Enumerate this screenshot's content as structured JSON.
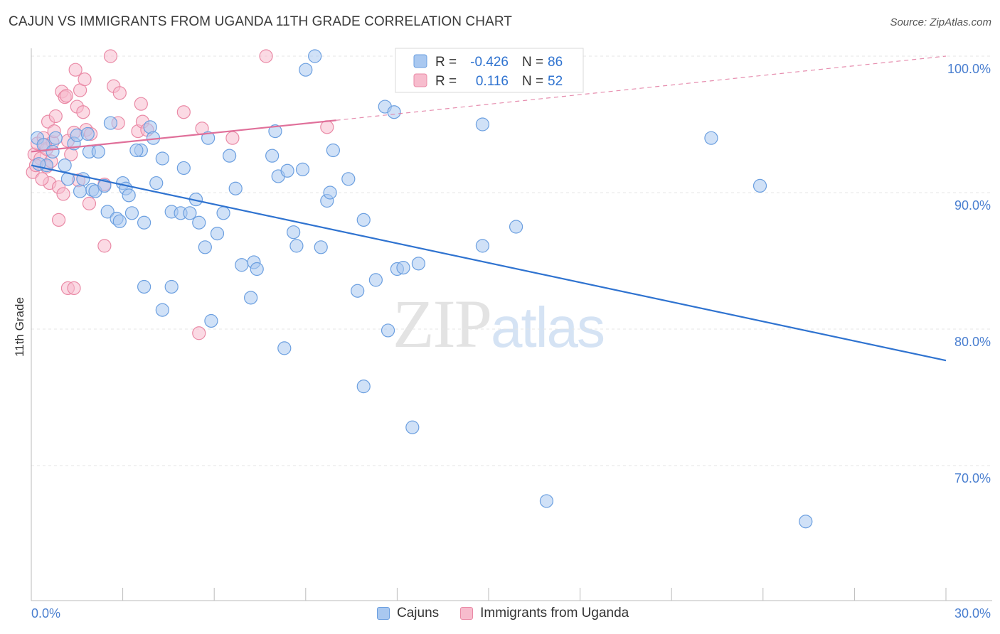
{
  "title": "CAJUN VS IMMIGRANTS FROM UGANDA 11TH GRADE CORRELATION CHART",
  "source": "Source: ZipAtlas.com",
  "watermark": {
    "part1": "ZIP",
    "part2": "atlas"
  },
  "legend": {
    "rows": [
      {
        "r_label": "R =",
        "r_value": "-0.426",
        "n_label": "N =",
        "n_value": "86"
      },
      {
        "r_label": "R =",
        "r_value": "0.116",
        "n_label": "N =",
        "n_value": "52"
      }
    ]
  },
  "bottom_legend": [
    "Cajuns",
    "Immigrants from Uganda"
  ],
  "colors": {
    "blue_fill": "#a9c8f0",
    "blue_stroke": "#6b9fe0",
    "blue_line": "#2f73d0",
    "pink_fill": "#f7bccd",
    "pink_stroke": "#ea8aa6",
    "pink_line": "#e0709a",
    "grid": "#e4e4e4",
    "tick_label": "#4a7fd0"
  },
  "chart_data": {
    "type": "scatter",
    "title": "CAJUN VS IMMIGRANTS FROM UGANDA 11TH GRADE CORRELATION CHART",
    "xlabel": "",
    "ylabel": "11th Grade",
    "xlim": [
      0,
      30
    ],
    "ylim": [
      60.5,
      102.5
    ],
    "x_tick_labels": [
      "0.0%",
      "30.0%"
    ],
    "y_ticks": [
      100,
      90,
      80,
      70
    ],
    "y_tick_labels": [
      "100.0%",
      "90.0%",
      "80.0%",
      "70.0%"
    ],
    "grid": true,
    "legend_position": "top-center",
    "series": [
      {
        "name": "Cajuns",
        "color": "#a9c8f0",
        "points": [
          [
            0.2,
            94.0
          ],
          [
            0.4,
            93.5
          ],
          [
            0.5,
            92.0
          ],
          [
            0.7,
            93.0
          ],
          [
            0.8,
            94.0
          ],
          [
            1.1,
            92.0
          ],
          [
            1.2,
            91.0
          ],
          [
            1.4,
            93.6
          ],
          [
            1.5,
            94.2
          ],
          [
            1.6,
            90.1
          ],
          [
            1.7,
            91.0
          ],
          [
            1.9,
            93.0
          ],
          [
            2.0,
            90.2
          ],
          [
            2.1,
            90.1
          ],
          [
            2.2,
            93.0
          ],
          [
            2.4,
            90.5
          ],
          [
            2.5,
            88.6
          ],
          [
            2.6,
            95.1
          ],
          [
            2.8,
            88.1
          ],
          [
            2.9,
            87.9
          ],
          [
            3.0,
            90.7
          ],
          [
            3.1,
            90.3
          ],
          [
            3.2,
            89.8
          ],
          [
            3.3,
            88.5
          ],
          [
            3.6,
            93.1
          ],
          [
            3.7,
            87.8
          ],
          [
            3.7,
            83.1
          ],
          [
            3.9,
            94.8
          ],
          [
            4.0,
            94.0
          ],
          [
            4.1,
            90.7
          ],
          [
            4.3,
            92.5
          ],
          [
            4.3,
            81.4
          ],
          [
            4.6,
            88.6
          ],
          [
            4.6,
            83.1
          ],
          [
            4.9,
            88.5
          ],
          [
            5.0,
            91.8
          ],
          [
            5.2,
            88.5
          ],
          [
            5.4,
            89.5
          ],
          [
            5.5,
            87.8
          ],
          [
            5.7,
            86.0
          ],
          [
            5.8,
            94.0
          ],
          [
            5.9,
            80.6
          ],
          [
            6.1,
            87.0
          ],
          [
            6.3,
            88.5
          ],
          [
            6.5,
            92.7
          ],
          [
            6.7,
            90.3
          ],
          [
            6.9,
            84.7
          ],
          [
            7.2,
            82.3
          ],
          [
            7.3,
            84.9
          ],
          [
            7.4,
            84.4
          ],
          [
            7.9,
            92.7
          ],
          [
            8.0,
            94.5
          ],
          [
            8.1,
            91.2
          ],
          [
            8.3,
            78.6
          ],
          [
            8.4,
            91.6
          ],
          [
            8.6,
            87.1
          ],
          [
            8.7,
            86.1
          ],
          [
            8.9,
            91.7
          ],
          [
            9.0,
            99.0
          ],
          [
            9.3,
            100.0
          ],
          [
            9.5,
            86.0
          ],
          [
            9.7,
            89.4
          ],
          [
            9.8,
            90.0
          ],
          [
            9.9,
            93.1
          ],
          [
            10.4,
            91.0
          ],
          [
            10.7,
            82.8
          ],
          [
            10.9,
            88.0
          ],
          [
            10.9,
            75.8
          ],
          [
            11.3,
            83.6
          ],
          [
            11.6,
            96.3
          ],
          [
            11.7,
            79.9
          ],
          [
            11.9,
            95.9
          ],
          [
            12.0,
            84.4
          ],
          [
            12.2,
            84.5
          ],
          [
            12.5,
            72.8
          ],
          [
            12.7,
            84.8
          ],
          [
            14.8,
            95.0
          ],
          [
            14.8,
            86.1
          ],
          [
            15.9,
            87.5
          ],
          [
            16.9,
            67.4
          ],
          [
            22.3,
            94.0
          ],
          [
            23.9,
            90.5
          ],
          [
            25.4,
            65.9
          ],
          [
            0.25,
            92.1
          ],
          [
            1.85,
            94.3
          ],
          [
            3.45,
            93.1
          ]
        ]
      },
      {
        "name": "Immigrants from Uganda",
        "color": "#f7bccd",
        "points": [
          [
            0.05,
            91.5
          ],
          [
            0.1,
            92.8
          ],
          [
            0.2,
            93.6
          ],
          [
            0.3,
            92.5
          ],
          [
            0.4,
            94.0
          ],
          [
            0.5,
            93.2
          ],
          [
            0.5,
            91.9
          ],
          [
            0.55,
            95.2
          ],
          [
            0.6,
            90.7
          ],
          [
            0.7,
            93.7
          ],
          [
            0.8,
            95.6
          ],
          [
            0.9,
            90.4
          ],
          [
            0.9,
            88.0
          ],
          [
            1.0,
            97.4
          ],
          [
            1.05,
            89.9
          ],
          [
            1.1,
            97.0
          ],
          [
            1.2,
            93.8
          ],
          [
            1.2,
            83.0
          ],
          [
            1.3,
            92.8
          ],
          [
            1.4,
            94.4
          ],
          [
            1.4,
            83.0
          ],
          [
            1.45,
            99.0
          ],
          [
            1.5,
            96.3
          ],
          [
            1.55,
            90.9
          ],
          [
            1.6,
            97.5
          ],
          [
            1.7,
            95.9
          ],
          [
            1.75,
            98.3
          ],
          [
            1.8,
            94.6
          ],
          [
            1.9,
            89.2
          ],
          [
            1.95,
            94.3
          ],
          [
            2.4,
            90.6
          ],
          [
            2.4,
            86.1
          ],
          [
            2.6,
            100.0
          ],
          [
            2.7,
            97.8
          ],
          [
            2.85,
            95.1
          ],
          [
            2.9,
            97.3
          ],
          [
            3.5,
            94.5
          ],
          [
            3.6,
            96.5
          ],
          [
            3.65,
            95.2
          ],
          [
            3.8,
            94.6
          ],
          [
            5.0,
            95.9
          ],
          [
            5.5,
            79.7
          ],
          [
            5.6,
            94.7
          ],
          [
            6.6,
            94.0
          ],
          [
            7.7,
            100.0
          ],
          [
            9.7,
            94.8
          ],
          [
            0.15,
            92.0
          ],
          [
            0.35,
            91.0
          ],
          [
            0.45,
            93.5
          ],
          [
            0.65,
            92.3
          ],
          [
            0.75,
            94.5
          ],
          [
            1.15,
            97.1
          ]
        ]
      }
    ],
    "trend_lines": [
      {
        "series": "Cajuns",
        "x": [
          0,
          30
        ],
        "y": [
          92.0,
          77.7
        ]
      },
      {
        "series": "Immigrants from Uganda",
        "x": [
          0,
          10
        ],
        "y": [
          93.0,
          95.3
        ],
        "dashed_extension_to": [
          30,
          100.0
        ]
      }
    ]
  }
}
